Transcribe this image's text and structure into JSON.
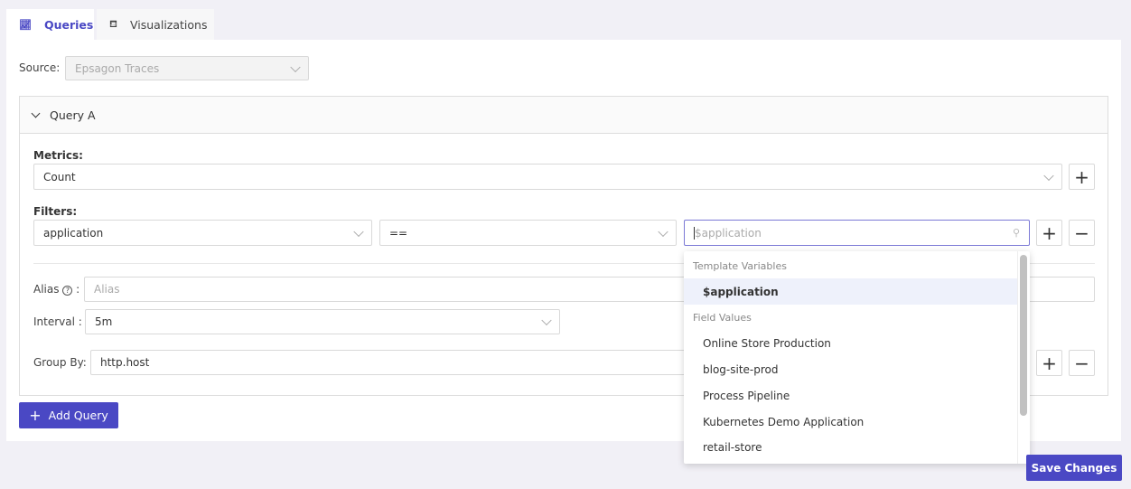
{
  "tabs": [
    {
      "label": "Queries",
      "icon": "line-chart-icon",
      "active": true
    },
    {
      "label": "Visualizations",
      "icon": "paint-bucket-icon",
      "active": false
    }
  ],
  "source": {
    "label": "Source:",
    "value": "Epsagon Traces"
  },
  "query": {
    "title": "Query A",
    "metrics_label": "Metrics:",
    "metric_value": "Count",
    "filters_label": "Filters:",
    "filter_field": "application",
    "filter_op": "==",
    "filter_value_placeholder": "$application",
    "alias_label": "Alias",
    "alias_colon": ":",
    "alias_placeholder": "Alias",
    "interval_label": "Interval :",
    "interval_value": "5m",
    "groupby_label": "Group By:",
    "groupby_value": "http.host"
  },
  "dropdown": {
    "group1": "Template Variables",
    "group1_items": [
      "$application"
    ],
    "group2": "Field Values",
    "group2_items": [
      "Online Store Production",
      "blog-site-prod",
      "Process Pipeline",
      "Kubernetes Demo Application",
      "retail-store"
    ]
  },
  "add_query": "Add Query",
  "save": "Save Changes",
  "accent": "#4a48c4"
}
